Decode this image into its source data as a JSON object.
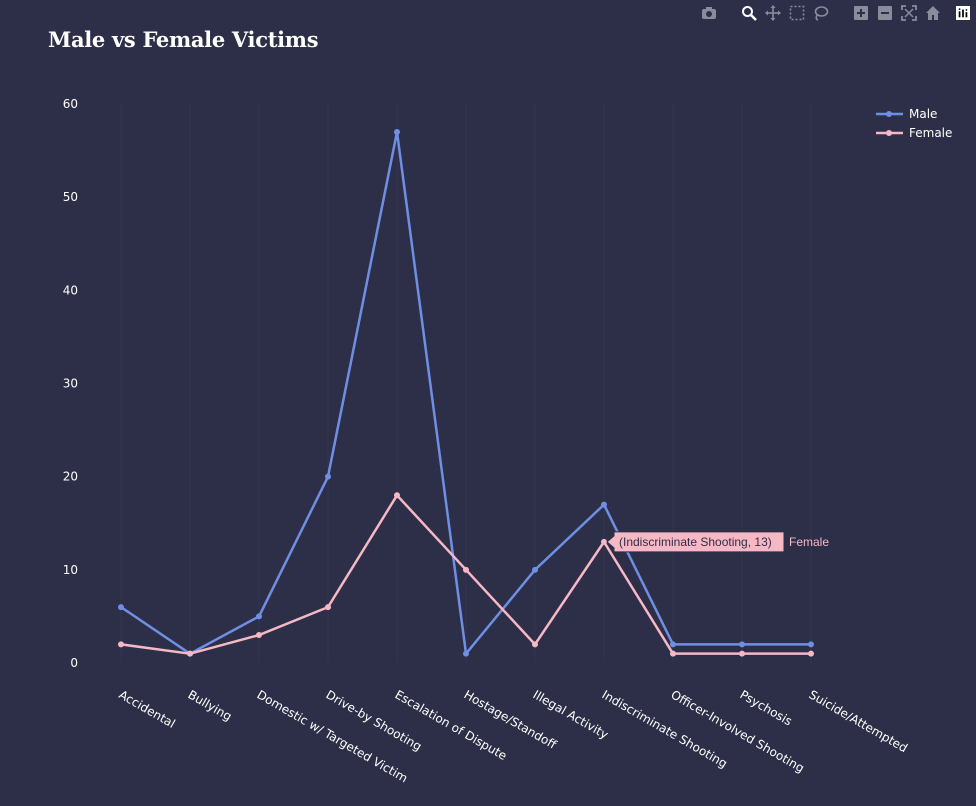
{
  "modebar": {
    "icons": [
      "camera-icon",
      "zoom-icon",
      "pan-icon",
      "box-select-icon",
      "lasso-icon",
      "zoom-in-icon",
      "zoom-out-icon",
      "autoscale-icon",
      "home-icon",
      "plotly-logo-icon"
    ]
  },
  "colors": {
    "background": "#2d2f48",
    "male": "#6f8fe3",
    "female": "#f7b8c6",
    "text": "#ffffff"
  },
  "chart_data": {
    "type": "line",
    "title": "Male vs Female Victims",
    "xlabel": "",
    "ylabel": "",
    "ylim": [
      0,
      60
    ],
    "yticks": [
      0,
      10,
      20,
      30,
      40,
      50,
      60
    ],
    "grid": false,
    "legend_position": "top-right",
    "categories": [
      "Accidental",
      "Bullying",
      "Domestic w/ Targeted Victim",
      "Drive-by Shooting",
      "Escalation of Dispute",
      "Hostage/Standoff",
      "Illegal Activity",
      "Indiscriminate Shooting",
      "Officer-Involved Shooting",
      "Psychosis",
      "Suicide/Attempted"
    ],
    "series": [
      {
        "name": "Male",
        "color": "#6f8fe3",
        "values": [
          6,
          1,
          5,
          20,
          57,
          1,
          10,
          17,
          2,
          2,
          2
        ]
      },
      {
        "name": "Female",
        "color": "#f7b8c6",
        "values": [
          2,
          1,
          3,
          6,
          18,
          10,
          2,
          13,
          1,
          1,
          1
        ]
      }
    ],
    "hover": {
      "series": "Female",
      "category": "Indiscriminate Shooting",
      "label": "(Indiscriminate Shooting, 13)",
      "name": "Female"
    }
  }
}
